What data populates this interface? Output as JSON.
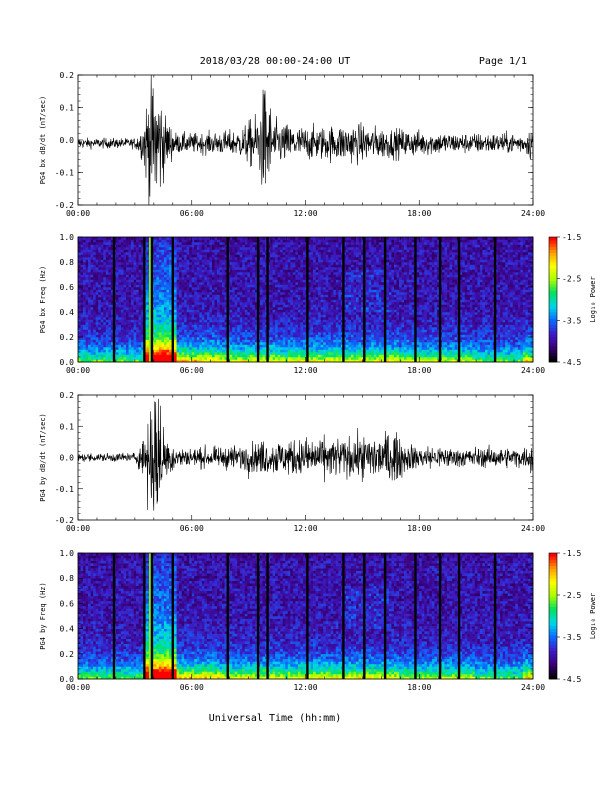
{
  "header": {
    "title": "2018/03/28  00:00-24:00 UT",
    "page": "Page 1/1"
  },
  "footer": {
    "xlabel": "Universal Time (hh:mm)"
  },
  "colors": {
    "colorbar_stops": [
      "#000000",
      "#3a007a",
      "#3b1ec8",
      "#0a6cff",
      "#00d8e8",
      "#00e060",
      "#a8ff00",
      "#ffff00",
      "#ff9a00",
      "#ff0000"
    ]
  },
  "chart_data": [
    {
      "type": "line",
      "id": "bx-waveform",
      "ylabel": "PG4 bx dB/dt (nT/sec)",
      "x_ticks": [
        "00:00",
        "06:00",
        "12:00",
        "18:00",
        "24:00"
      ],
      "xlim_hours": [
        0,
        24
      ],
      "ylim": [
        -0.2,
        0.2
      ],
      "y_ticks": [
        "-0.2",
        "-0.1",
        "0.0",
        "0.1",
        "0.2"
      ],
      "baseline": -0.01,
      "amplitude_envelope": [
        [
          0,
          0.015
        ],
        [
          3,
          0.015
        ],
        [
          3.4,
          0.05
        ],
        [
          3.8,
          0.2
        ],
        [
          4.2,
          0.2
        ],
        [
          4.6,
          0.08
        ],
        [
          5.2,
          0.03
        ],
        [
          6.5,
          0.03
        ],
        [
          8.5,
          0.04
        ],
        [
          9.5,
          0.09
        ],
        [
          9.9,
          0.19
        ],
        [
          10.3,
          0.07
        ],
        [
          11.5,
          0.05
        ],
        [
          13.0,
          0.05
        ],
        [
          14.5,
          0.06
        ],
        [
          15.5,
          0.05
        ],
        [
          17.5,
          0.04
        ],
        [
          20,
          0.03
        ],
        [
          23.6,
          0.03
        ],
        [
          24,
          0.06
        ]
      ]
    },
    {
      "type": "heatmap",
      "id": "bx-spectrogram",
      "ylabel": "PG4 bx Freq (Hz)",
      "x_ticks": [
        "00:00",
        "06:00",
        "12:00",
        "18:00",
        "24:00"
      ],
      "xlim_hours": [
        0,
        24
      ],
      "ylim": [
        0,
        1.0
      ],
      "y_ticks": [
        "0.0",
        "0.2",
        "0.4",
        "0.6",
        "0.8",
        "1.0"
      ],
      "colorbar": {
        "label": "Log₁₀ Power",
        "range": [
          -4.5,
          -1.5
        ],
        "ticks": [
          "-1.5",
          "-2.5",
          "-3.5",
          "-4.5"
        ]
      },
      "gap_hours": [
        1.9,
        3.5,
        3.9,
        5.0,
        7.9,
        9.5,
        10.0,
        12.1,
        14.0,
        15.1,
        16.2,
        17.8,
        19.1,
        20.1,
        22.0
      ]
    },
    {
      "type": "line",
      "id": "by-waveform",
      "ylabel": "PG4 by dB/dt (nT/sec)",
      "x_ticks": [
        "00:00",
        "06:00",
        "12:00",
        "18:00",
        "24:00"
      ],
      "xlim_hours": [
        0,
        24
      ],
      "ylim": [
        -0.2,
        0.2
      ],
      "y_ticks": [
        "-0.2",
        "-0.1",
        "0.0",
        "0.1",
        "0.2"
      ],
      "baseline": 0.0,
      "amplitude_envelope": [
        [
          0,
          0.012
        ],
        [
          3,
          0.015
        ],
        [
          3.4,
          0.05
        ],
        [
          3.8,
          0.2
        ],
        [
          4.2,
          0.2
        ],
        [
          4.6,
          0.08
        ],
        [
          5.2,
          0.03
        ],
        [
          7.5,
          0.03
        ],
        [
          9.5,
          0.05
        ],
        [
          12.5,
          0.06
        ],
        [
          14.5,
          0.06
        ],
        [
          16.5,
          0.08
        ],
        [
          17.5,
          0.04
        ],
        [
          20,
          0.03
        ],
        [
          23.6,
          0.03
        ],
        [
          24,
          0.05
        ]
      ]
    },
    {
      "type": "heatmap",
      "id": "by-spectrogram",
      "ylabel": "PG4 by Freq (Hz)",
      "x_ticks": [
        "00:00",
        "06:00",
        "12:00",
        "18:00",
        "24:00"
      ],
      "xlim_hours": [
        0,
        24
      ],
      "ylim": [
        0,
        1.0
      ],
      "y_ticks": [
        "0.0",
        "0.2",
        "0.4",
        "0.6",
        "0.8",
        "1.0"
      ],
      "colorbar": {
        "label": "Log₁₀ Power",
        "range": [
          -4.5,
          -1.5
        ],
        "ticks": [
          "-1.5",
          "-2.5",
          "-3.5",
          "-4.5"
        ]
      },
      "gap_hours": [
        1.9,
        3.5,
        3.9,
        5.0,
        7.9,
        9.5,
        10.0,
        12.1,
        14.0,
        15.1,
        16.2,
        17.8,
        19.1,
        20.1,
        22.0
      ]
    }
  ]
}
